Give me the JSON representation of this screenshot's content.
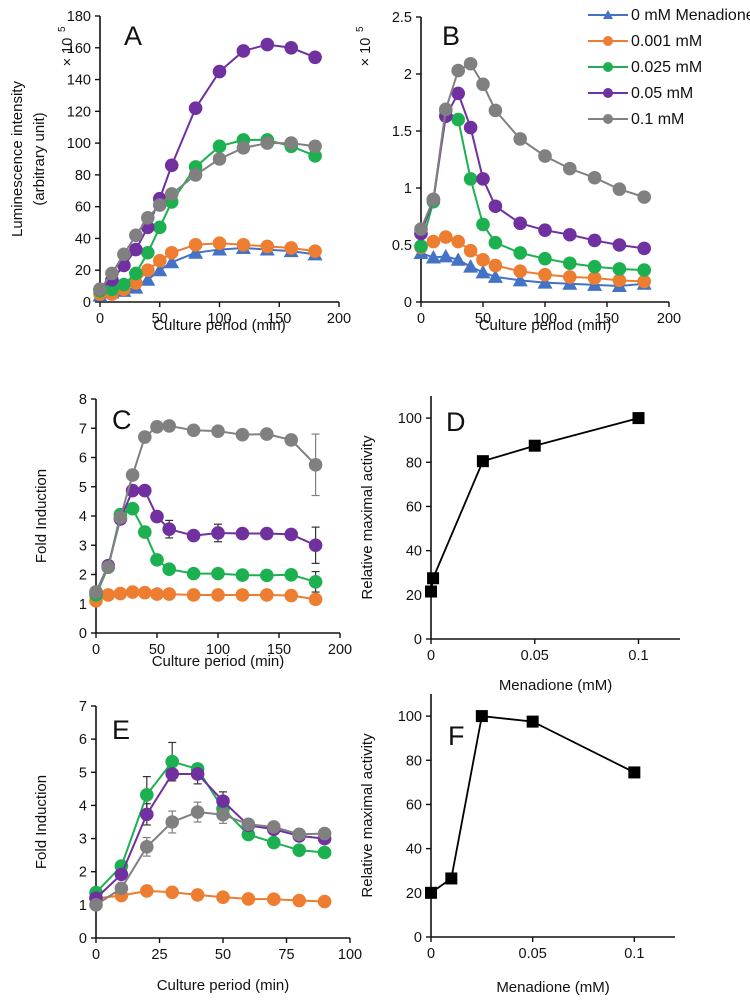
{
  "figure": {
    "legend": {
      "entries": [
        {
          "label": "0 mM Menadione",
          "color": "#4472C4",
          "marker": "triangle"
        },
        {
          "label": "0.001 mM",
          "color": "#ED7D31",
          "marker": "circle"
        },
        {
          "label": "0.025 mM",
          "color": "#1DB050",
          "marker": "circle"
        },
        {
          "label": "0.05 mM",
          "color": "#7030A0",
          "marker": "circle"
        },
        {
          "label": "0.1 mM",
          "color": "#808080",
          "marker": "circle"
        }
      ]
    }
  },
  "chart_data": [
    {
      "id": "A",
      "panel_label": "A",
      "type": "line",
      "title": "",
      "xlabel": "Culture period (min)",
      "ylabel": "Luminescence intensity",
      "ylabel2": "(arbitrary unit)",
      "y_multiplier": "× 10",
      "y_multiplier_exp": "5",
      "xlim": [
        0,
        200
      ],
      "ylim": [
        0,
        180
      ],
      "xticks": [
        0,
        50,
        100,
        150,
        200
      ],
      "yticks": [
        0,
        20,
        40,
        60,
        80,
        100,
        120,
        140,
        160,
        180
      ],
      "xtick_labels": [
        "0",
        "50",
        "100",
        "150",
        "200"
      ],
      "ytick_labels": [
        "0",
        "20",
        "40",
        "60",
        "80",
        "100",
        "120",
        "140",
        "160",
        "180"
      ],
      "grid": false,
      "x": [
        0,
        10,
        20,
        30,
        40,
        50,
        60,
        80,
        100,
        120,
        140,
        160,
        180
      ],
      "series": [
        {
          "name": "0 mM Menadione",
          "color": "#4472C4",
          "marker": "triangle",
          "values": [
            4,
            6,
            7,
            9,
            14,
            20,
            25,
            31,
            33,
            34,
            33,
            32,
            30
          ]
        },
        {
          "name": "0.001 mM",
          "color": "#ED7D31",
          "marker": "circle",
          "values": [
            5,
            5,
            8,
            12,
            20,
            26,
            31,
            36,
            37,
            36,
            35,
            34,
            32
          ]
        },
        {
          "name": "0.025 mM",
          "color": "#1DB050",
          "marker": "circle",
          "values": [
            7,
            8,
            11,
            18,
            31,
            47,
            63,
            85,
            98,
            102,
            102,
            98,
            92
          ]
        },
        {
          "name": "0.05 mM",
          "color": "#7030A0",
          "marker": "circle",
          "values": [
            8,
            14,
            23,
            33,
            47,
            65,
            86,
            122,
            145,
            158,
            162,
            160,
            154
          ]
        },
        {
          "name": "0.1 mM",
          "color": "#808080",
          "marker": "circle",
          "values": [
            8,
            18,
            30,
            42,
            53,
            61,
            68,
            80,
            90,
            97,
            100,
            100,
            98
          ]
        }
      ]
    },
    {
      "id": "B",
      "panel_label": "B",
      "type": "line",
      "title": "",
      "xlabel": "Culture period (min)",
      "ylabel": "",
      "y_multiplier": "× 10",
      "y_multiplier_exp": "5",
      "xlim": [
        0,
        200
      ],
      "ylim": [
        0,
        2.5
      ],
      "xticks": [
        0,
        50,
        100,
        150,
        200
      ],
      "yticks": [
        0,
        0.5,
        1,
        1.5,
        2,
        2.5
      ],
      "xtick_labels": [
        "0",
        "50",
        "100",
        "150",
        "200"
      ],
      "ytick_labels": [
        "0",
        "0.5",
        "1",
        "1.5",
        "2",
        "2.5"
      ],
      "grid": false,
      "legend_position": "top-right",
      "x": [
        0,
        10,
        20,
        30,
        40,
        50,
        60,
        80,
        100,
        120,
        140,
        160,
        180
      ],
      "series": [
        {
          "name": "0 mM Menadione",
          "color": "#4472C4",
          "marker": "triangle",
          "values": [
            0.43,
            0.39,
            0.4,
            0.37,
            0.31,
            0.26,
            0.22,
            0.19,
            0.17,
            0.16,
            0.15,
            0.14,
            0.16
          ]
        },
        {
          "name": "0.001 mM",
          "color": "#ED7D31",
          "marker": "circle",
          "values": [
            0.48,
            0.53,
            0.57,
            0.53,
            0.45,
            0.37,
            0.32,
            0.27,
            0.24,
            0.22,
            0.21,
            0.19,
            0.18
          ]
        },
        {
          "name": "0.025 mM",
          "color": "#1DB050",
          "marker": "circle",
          "values": [
            0.49,
            0.88,
            1.68,
            1.6,
            1.08,
            0.68,
            0.52,
            0.43,
            0.38,
            0.34,
            0.31,
            0.29,
            0.28
          ]
        },
        {
          "name": "0.05 mM",
          "color": "#7030A0",
          "marker": "circle",
          "values": [
            0.6,
            0.9,
            1.63,
            1.83,
            1.53,
            1.08,
            0.84,
            0.69,
            0.63,
            0.59,
            0.54,
            0.5,
            0.47
          ]
        },
        {
          "name": "0.1 mM",
          "color": "#808080",
          "marker": "circle",
          "values": [
            0.64,
            0.9,
            1.69,
            2.03,
            2.09,
            1.91,
            1.68,
            1.43,
            1.28,
            1.17,
            1.09,
            0.99,
            0.92
          ]
        }
      ]
    },
    {
      "id": "C",
      "panel_label": "C",
      "type": "line",
      "title": "",
      "xlabel": "Culture period (min)",
      "ylabel": "Fold Induction",
      "xlim": [
        0,
        200
      ],
      "ylim": [
        0,
        8
      ],
      "xticks": [
        0,
        50,
        100,
        150,
        200
      ],
      "yticks": [
        0,
        1,
        2,
        3,
        4,
        5,
        6,
        7,
        8
      ],
      "xtick_labels": [
        "0",
        "50",
        "100",
        "150",
        "200"
      ],
      "ytick_labels": [
        "0",
        "1",
        "2",
        "3",
        "4",
        "5",
        "6",
        "7",
        "8"
      ],
      "grid": false,
      "x": [
        0,
        10,
        20,
        30,
        40,
        50,
        60,
        80,
        100,
        120,
        140,
        160,
        180
      ],
      "series": [
        {
          "name": "0.001 mM",
          "color": "#ED7D31",
          "marker": "circle",
          "values": [
            1.1,
            1.3,
            1.35,
            1.4,
            1.38,
            1.33,
            1.33,
            1.3,
            1.3,
            1.3,
            1.3,
            1.28,
            1.15
          ]
        },
        {
          "name": "0.025 mM",
          "color": "#1DB050",
          "marker": "circle",
          "values": [
            1.3,
            2.25,
            4.05,
            4.25,
            3.45,
            2.5,
            2.18,
            2.03,
            2.03,
            1.98,
            1.97,
            1.99,
            1.75
          ]
        },
        {
          "name": "0.05 mM",
          "color": "#7030A0",
          "marker": "circle",
          "values": [
            1.4,
            2.3,
            3.9,
            4.87,
            4.87,
            3.98,
            3.55,
            3.33,
            3.42,
            3.4,
            3.4,
            3.37,
            3.0
          ]
        },
        {
          "name": "0.1 mM",
          "color": "#808080",
          "marker": "circle",
          "values": [
            1.4,
            2.25,
            3.95,
            5.4,
            6.7,
            7.05,
            7.08,
            6.93,
            6.9,
            6.78,
            6.8,
            6.6,
            5.75
          ]
        }
      ],
      "error_bars": [
        {
          "series": "0.1 mM",
          "x": 180,
          "err": 1.05
        },
        {
          "series": "0.05 mM",
          "x": 180,
          "err": 0.62
        },
        {
          "series": "0.05 mM",
          "x": 60,
          "err": 0.3
        },
        {
          "series": "0.05 mM",
          "x": 100,
          "err": 0.3
        },
        {
          "series": "0.025 mM",
          "x": 180,
          "err": 0.35
        }
      ]
    },
    {
      "id": "D",
      "panel_label": "D",
      "type": "line",
      "title": "",
      "xlabel": "Menadione (mM)",
      "ylabel": "Relative maximal activity",
      "xlim": [
        0,
        0.12
      ],
      "ylim": [
        0,
        110
      ],
      "xticks": [
        0,
        0.05,
        0.1
      ],
      "yticks": [
        0,
        20,
        40,
        60,
        80,
        100
      ],
      "xtick_labels": [
        "0",
        "0.05",
        "0.1"
      ],
      "ytick_labels": [
        "0",
        "20",
        "40",
        "60",
        "80",
        "100"
      ],
      "grid": false,
      "x": [
        0,
        0.001,
        0.025,
        0.05,
        0.1
      ],
      "series": [
        {
          "name": "Relative maximal activity",
          "color": "#000000",
          "marker": "square",
          "values": [
            21.5,
            27.5,
            80.5,
            87.5,
            100
          ]
        }
      ]
    },
    {
      "id": "E",
      "panel_label": "E",
      "type": "line",
      "title": "",
      "xlabel": "Culture period (min)",
      "ylabel": "Fold Induction",
      "xlim": [
        0,
        100
      ],
      "ylim": [
        0,
        7
      ],
      "xticks": [
        0,
        25,
        50,
        75,
        100
      ],
      "yticks": [
        0,
        1,
        2,
        3,
        4,
        5,
        6,
        7
      ],
      "xtick_labels": [
        "0",
        "25",
        "50",
        "75",
        "100"
      ],
      "ytick_labels": [
        "0",
        "1",
        "2",
        "3",
        "4",
        "5",
        "6",
        "7"
      ],
      "grid": false,
      "x": [
        0,
        10,
        20,
        30,
        40,
        50,
        60,
        70,
        80,
        90
      ],
      "series": [
        {
          "name": "0.001 mM",
          "color": "#ED7D31",
          "marker": "circle",
          "values": [
            1.2,
            1.28,
            1.42,
            1.38,
            1.3,
            1.23,
            1.18,
            1.17,
            1.13,
            1.1
          ]
        },
        {
          "name": "0.025 mM",
          "color": "#1DB050",
          "marker": "circle",
          "values": [
            1.37,
            2.17,
            4.32,
            5.32,
            5.1,
            3.9,
            3.12,
            2.88,
            2.65,
            2.58
          ]
        },
        {
          "name": "0.05 mM",
          "color": "#7030A0",
          "marker": "circle",
          "values": [
            1.2,
            1.92,
            3.73,
            4.95,
            4.95,
            4.13,
            3.4,
            3.28,
            3.08,
            3.0
          ]
        },
        {
          "name": "0.1 mM",
          "color": "#808080",
          "marker": "circle",
          "values": [
            1.0,
            1.5,
            2.75,
            3.5,
            3.8,
            3.72,
            3.43,
            3.35,
            3.13,
            3.15
          ]
        }
      ],
      "error_bars": [
        {
          "series": "0.025 mM",
          "x": 20,
          "err": 0.55
        },
        {
          "series": "0.025 mM",
          "x": 30,
          "err": 0.58
        },
        {
          "series": "0.05 mM",
          "x": 20,
          "err": 0.32
        },
        {
          "series": "0.05 mM",
          "x": 40,
          "err": 0.3
        },
        {
          "series": "0.05 mM",
          "x": 50,
          "err": 0.28
        },
        {
          "series": "0.1 mM",
          "x": 20,
          "err": 0.28
        },
        {
          "series": "0.1 mM",
          "x": 30,
          "err": 0.33
        },
        {
          "series": "0.1 mM",
          "x": 40,
          "err": 0.3
        },
        {
          "series": "0.1 mM",
          "x": 50,
          "err": 0.26
        }
      ]
    },
    {
      "id": "F",
      "panel_label": "F",
      "type": "line",
      "title": "",
      "xlabel": "Menadione (mM)",
      "ylabel": "Relative maximal activity",
      "xlim": [
        0,
        0.12
      ],
      "ylim": [
        0,
        110
      ],
      "xticks": [
        0,
        0.05,
        0.1
      ],
      "yticks": [
        0,
        20,
        40,
        60,
        80,
        100
      ],
      "xtick_labels": [
        "0",
        "0.05",
        "0.1"
      ],
      "ytick_labels": [
        "0",
        "20",
        "40",
        "60",
        "80",
        "100"
      ],
      "grid": false,
      "x": [
        0,
        0.01,
        0.025,
        0.05,
        0.1
      ],
      "series": [
        {
          "name": "Relative maximal activity",
          "color": "#000000",
          "marker": "square",
          "values": [
            20,
            26.5,
            100,
            97.5,
            74.5
          ]
        }
      ]
    }
  ]
}
